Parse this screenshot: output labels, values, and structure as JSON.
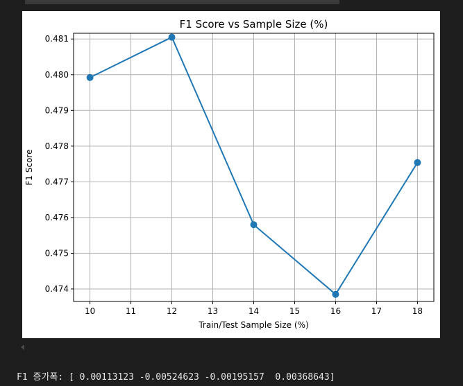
{
  "chart_data": {
    "type": "line",
    "title": "F1 Score vs Sample Size (%)",
    "xlabel": "Train/Test Sample Size (%)",
    "ylabel": "F1 Score",
    "xlim": [
      9.6,
      18.4
    ],
    "ylim": [
      0.47365,
      0.48116
    ],
    "x_ticks": [
      10,
      11,
      12,
      13,
      14,
      15,
      16,
      17,
      18
    ],
    "y_ticks": [
      0.474,
      0.475,
      0.476,
      0.477,
      0.478,
      0.479,
      0.48,
      0.481
    ],
    "y_tick_labels": [
      "0.474",
      "0.475",
      "0.476",
      "0.477",
      "0.478",
      "0.479",
      "0.480",
      "0.481"
    ],
    "grid": true,
    "color": "#1f77b4",
    "x": [
      10,
      12,
      14,
      16,
      18
    ],
    "y": [
      0.47992,
      0.48105,
      0.4758,
      0.47385,
      0.47754
    ]
  },
  "console": {
    "text": "F1 증가폭: [ 0.00113123 -0.00524623 -0.00195157  0.00368643]"
  }
}
